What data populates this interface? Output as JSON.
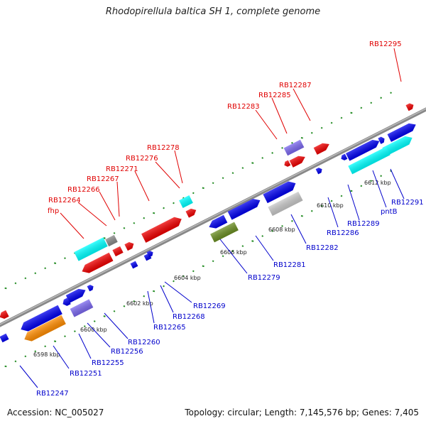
{
  "title": "Rhodopirellula baltica SH 1, complete genome",
  "accession": "Accession: NC_005027",
  "summary": "Topology: circular; Length: 7,145,576 bp; Genes: 7,405",
  "scale_labels": [
    "6598 kbp",
    "6600 kbp",
    "6602 kbp",
    "6604 kbp",
    "6606 kbp",
    "6608 kbp",
    "6610 kbp",
    "6612 kbp"
  ],
  "colors": {
    "red": "#ee0000",
    "blue": "#0000ee",
    "cyan": "#00ffff",
    "gray": "#888888",
    "lightgray": "#c8c8c8",
    "purple": "#7b68ee",
    "orange": "#ff8c00",
    "olive": "#6b8e23",
    "dots": "#228b22",
    "backbone": "#888888",
    "label_red": "#e00000",
    "label_blue": "#0000cc"
  },
  "labels": {
    "rb12295": "RB12295",
    "rb12287": "RB12287",
    "rb12285": "RB12285",
    "rb12283": "RB12283",
    "rb12278": "RB12278",
    "rb12276": "RB12276",
    "rb12271": "RB12271",
    "rb12267": "RB12267",
    "rb12266": "RB12266",
    "rb12264": "RB12264",
    "fhp": "fhp",
    "rb12247": "RB12247",
    "rb12251": "RB12251",
    "rb12255": "RB12255",
    "rb12256": "RB12256",
    "rb12260": "RB12260",
    "rb12265": "RB12265",
    "rb12268": "RB12268",
    "rb12269": "RB12269",
    "rb12279": "RB12279",
    "rb12281": "RB12281",
    "rb12282": "RB12282",
    "rb12286": "RB12286",
    "rb12289": "RB12289",
    "pntB": "pntB",
    "rb12291": "RB12291"
  }
}
